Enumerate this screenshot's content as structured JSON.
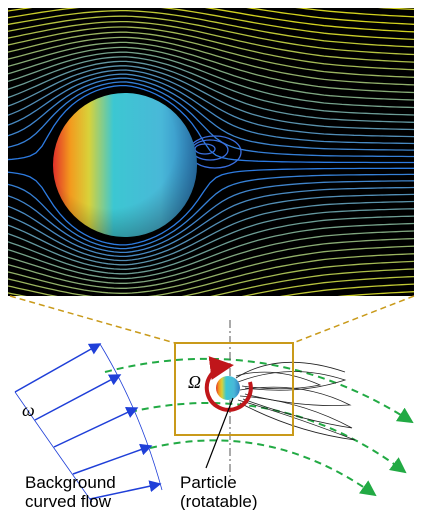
{
  "labels": {
    "omega": "ω",
    "Omega": "Ω",
    "background": [
      "Background",
      "curved flow"
    ],
    "particle": [
      "Particle",
      "(rotatable)"
    ]
  }
}
